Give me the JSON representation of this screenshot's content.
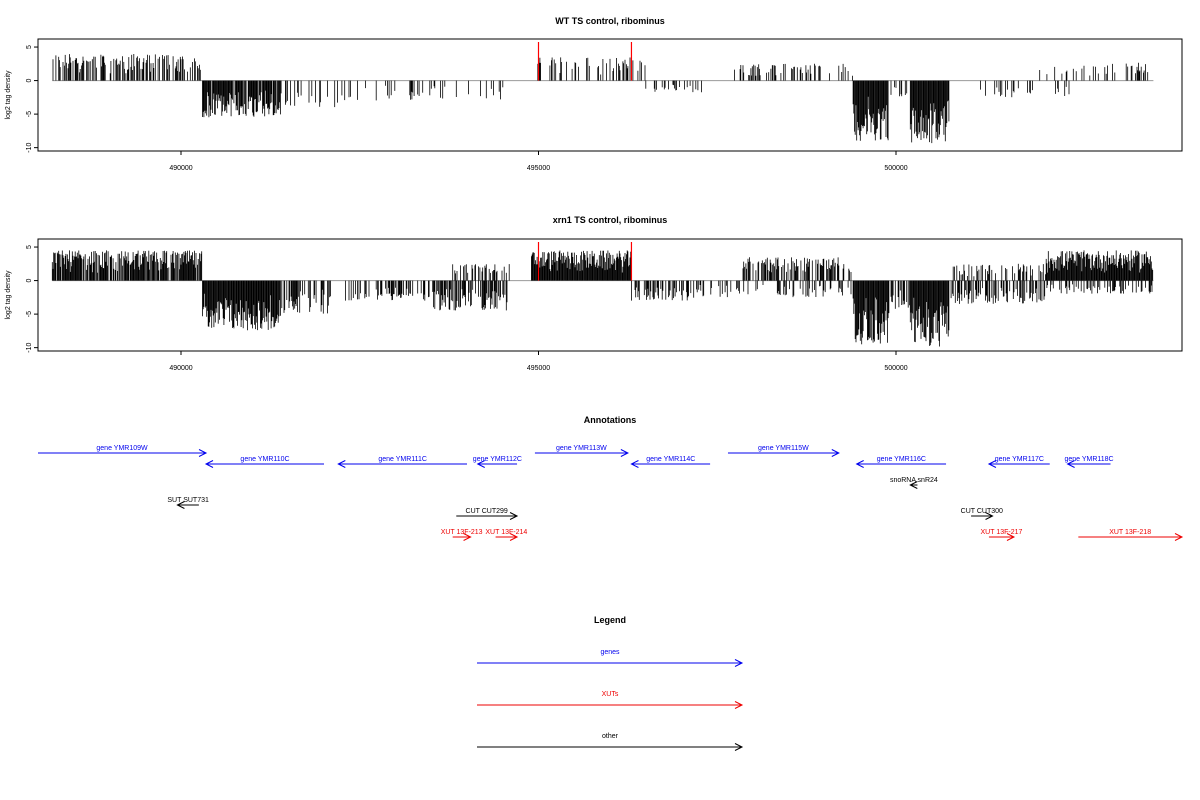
{
  "chart_data": [
    {
      "type": "bar",
      "title": "WT TS control, ribominus",
      "ylabel": "log2 tag density",
      "xlim": [
        488000,
        504000
      ],
      "ylim": [
        -10.5,
        6.2
      ],
      "x_ticks": [
        490000,
        495000,
        500000
      ],
      "x_tick_labels": [
        "490000",
        "495000",
        "500000"
      ],
      "y_ticks": [
        -10,
        -5,
        0,
        5
      ],
      "y_tick_labels": [
        "-10",
        "-5",
        "0",
        "5"
      ],
      "marker_lines": [
        495000,
        496300
      ],
      "marker_color": "#ff0000",
      "bar_color": "#000000",
      "baseline_color": "#999999",
      "segments": [
        {
          "from": 488200,
          "to": 490300,
          "max": 4,
          "density": 0.55
        },
        {
          "from": 490300,
          "to": 491400,
          "max": -5.5,
          "density": 0.9
        },
        {
          "from": 491400,
          "to": 492300,
          "max": -4,
          "density": 0.25
        },
        {
          "from": 492300,
          "to": 494600,
          "max": -3,
          "density": 0.12
        },
        {
          "from": 494950,
          "to": 496500,
          "max": 3.5,
          "density": 0.3
        },
        {
          "from": 496500,
          "to": 497300,
          "max": -1.8,
          "density": 0.2
        },
        {
          "from": 497700,
          "to": 499400,
          "max": 2.5,
          "density": 0.3
        },
        {
          "from": 499400,
          "to": 499900,
          "max": -9,
          "density": 1.0
        },
        {
          "from": 499900,
          "to": 500200,
          "max": -2.5,
          "density": 0.2
        },
        {
          "from": 500200,
          "to": 500750,
          "max": -9.5,
          "density": 1.0
        },
        {
          "from": 501000,
          "to": 502000,
          "max": -2.5,
          "density": 0.15
        },
        {
          "from": 502000,
          "to": 503000,
          "max": 2.5,
          "density": 0.25
        },
        {
          "from": 502100,
          "to": 502500,
          "max": -2.5,
          "density": 0.12
        },
        {
          "from": 503000,
          "to": 503600,
          "max": 2.8,
          "density": 0.3
        }
      ]
    },
    {
      "type": "bar",
      "title": "xrn1 TS control, ribominus",
      "ylabel": "log2 tag density",
      "xlim": [
        488000,
        504000
      ],
      "ylim": [
        -10.5,
        6.2
      ],
      "x_ticks": [
        490000,
        495000,
        500000
      ],
      "x_tick_labels": [
        "490000",
        "495000",
        "500000"
      ],
      "y_ticks": [
        -10,
        -5,
        0,
        5
      ],
      "y_tick_labels": [
        "-10",
        "-5",
        "0",
        "5"
      ],
      "marker_lines": [
        495000,
        496300
      ],
      "marker_color": "#ff0000",
      "bar_color": "#000000",
      "baseline_color": "#999999",
      "segments": [
        {
          "from": 488200,
          "to": 490300,
          "max": 4.5,
          "density": 0.85
        },
        {
          "from": 490300,
          "to": 491400,
          "max": -7.5,
          "density": 1.0
        },
        {
          "from": 491400,
          "to": 492100,
          "max": -5,
          "density": 0.6
        },
        {
          "from": 492300,
          "to": 493500,
          "max": -3,
          "density": 0.45
        },
        {
          "from": 493500,
          "to": 494600,
          "max": -4.5,
          "density": 0.6
        },
        {
          "from": 493800,
          "to": 494600,
          "max": 2.5,
          "density": 0.3
        },
        {
          "from": 494900,
          "to": 496300,
          "max": 4.5,
          "density": 1.0
        },
        {
          "from": 496300,
          "to": 497200,
          "max": -3,
          "density": 0.5
        },
        {
          "from": 497800,
          "to": 499400,
          "max": 3.5,
          "density": 0.45
        },
        {
          "from": 497200,
          "to": 499400,
          "max": -2.5,
          "density": 0.25
        },
        {
          "from": 499400,
          "to": 499900,
          "max": -9.5,
          "density": 1.0
        },
        {
          "from": 499900,
          "to": 500200,
          "max": -5,
          "density": 0.5
        },
        {
          "from": 500200,
          "to": 500750,
          "max": -10,
          "density": 1.0
        },
        {
          "from": 500750,
          "to": 502100,
          "max": -3.5,
          "density": 0.55
        },
        {
          "from": 500800,
          "to": 502100,
          "max": 2.5,
          "density": 0.35
        },
        {
          "from": 502100,
          "to": 503600,
          "max": 4.5,
          "density": 1.0
        },
        {
          "from": 502100,
          "to": 503600,
          "max": -2,
          "density": 0.4
        }
      ]
    }
  ],
  "annotations": {
    "title": "Annotations",
    "xlim": [
      488000,
      504000
    ],
    "features": [
      {
        "label": "gene YMR109W",
        "start": 488000,
        "end": 490350,
        "strand": "+",
        "row": 0,
        "kind": "gene"
      },
      {
        "label": "gene YMR110C",
        "start": 490350,
        "end": 492000,
        "strand": "-",
        "row": 1,
        "kind": "gene"
      },
      {
        "label": "gene YMR111C",
        "start": 492200,
        "end": 494000,
        "strand": "-",
        "row": 1,
        "kind": "gene"
      },
      {
        "label": "gene YMR112C",
        "start": 494150,
        "end": 494700,
        "strand": "-",
        "row": 1,
        "kind": "gene"
      },
      {
        "label": "gene YMR113W",
        "start": 494950,
        "end": 496250,
        "strand": "+",
        "row": 0,
        "kind": "gene"
      },
      {
        "label": "gene YMR114C",
        "start": 496300,
        "end": 497400,
        "strand": "-",
        "row": 1,
        "kind": "gene"
      },
      {
        "label": "gene YMR115W",
        "start": 497650,
        "end": 499200,
        "strand": "+",
        "row": 0,
        "kind": "gene"
      },
      {
        "label": "gene YMR116C",
        "start": 499450,
        "end": 500700,
        "strand": "-",
        "row": 1,
        "kind": "gene"
      },
      {
        "label": "gene YMR117C",
        "start": 501300,
        "end": 502150,
        "strand": "-",
        "row": 1,
        "kind": "gene"
      },
      {
        "label": "gene YMR118C",
        "start": 502400,
        "end": 503000,
        "strand": "-",
        "row": 1,
        "kind": "gene"
      },
      {
        "label": "snoRNA snR24",
        "start": 500200,
        "end": 500300,
        "strand": "-",
        "row": 2,
        "kind": "other"
      },
      {
        "label": "SUT SUT731",
        "start": 489950,
        "end": 490250,
        "strand": "-",
        "row": 3,
        "kind": "other"
      },
      {
        "label": "CUT CUT299",
        "start": 493850,
        "end": 494700,
        "strand": "+",
        "row": 4,
        "kind": "other"
      },
      {
        "label": "CUT CUT300",
        "start": 501050,
        "end": 501350,
        "strand": "+",
        "row": 4,
        "kind": "other"
      },
      {
        "label": "XUT 13F-213",
        "start": 493800,
        "end": 494050,
        "strand": "+",
        "row": 5,
        "kind": "xut"
      },
      {
        "label": "XUT 13F-214",
        "start": 494400,
        "end": 494700,
        "strand": "+",
        "row": 5,
        "kind": "xut"
      },
      {
        "label": "XUT 13F-217",
        "start": 501300,
        "end": 501650,
        "strand": "+",
        "row": 5,
        "kind": "xut"
      },
      {
        "label": "XUT 13F-218",
        "start": 502550,
        "end": 504000,
        "strand": "+",
        "row": 5,
        "kind": "xut"
      }
    ]
  },
  "legend": {
    "title": "Legend",
    "items": [
      {
        "label": "genes",
        "kind": "gene"
      },
      {
        "label": "XUTs",
        "kind": "xut"
      },
      {
        "label": "other",
        "kind": "other"
      }
    ]
  },
  "colors": {
    "gene": "#0000ee",
    "xut": "#ee0000",
    "other": "#000000"
  }
}
